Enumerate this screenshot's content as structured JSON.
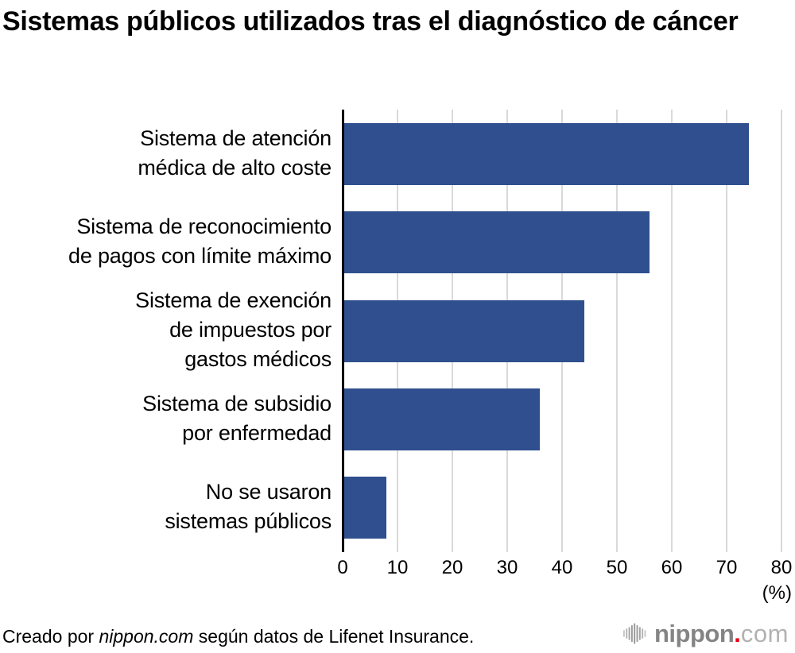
{
  "title": "Sistemas públicos utilizados tras el diagnóstico de cáncer",
  "chart_data": {
    "type": "bar",
    "orientation": "horizontal",
    "title": "Sistemas públicos utilizados tras el diagnóstico de cáncer",
    "categories": [
      "Sistema de atención médica de alto coste",
      "Sistema de reconocimiento de pagos con límite máximo",
      "Sistema de exención de impuestos por gastos médicos",
      "Sistema de subsidio por enfermedad",
      "No se usaron sistemas públicos"
    ],
    "category_lines": [
      [
        "Sistema de atención",
        "médica de alto coste"
      ],
      [
        "Sistema de reconocimiento",
        "de pagos con límite máximo"
      ],
      [
        "Sistema de exención",
        "de impuestos por",
        "gastos médicos"
      ],
      [
        "Sistema de subsidio",
        "por enfermedad"
      ],
      [
        "No se usaron",
        "sistemas públicos"
      ]
    ],
    "values": [
      74,
      56,
      44,
      36,
      8
    ],
    "xlim": [
      0,
      80
    ],
    "xticks": [
      0,
      10,
      20,
      30,
      40,
      50,
      60,
      70,
      80
    ],
    "unit_label": "(%)",
    "bar_color": "#2f4f8f",
    "grid_color": "#d9d9d9",
    "axis_color": "#000000",
    "grid": true,
    "legend": false
  },
  "footer": {
    "prefix": "Creado por ",
    "source_name": "nippon.com",
    "suffix": " según datos de Lifenet Insurance."
  },
  "logo": {
    "brand": "nippon",
    "dot": ".",
    "tld": "com",
    "brand_color": "#848484",
    "dot_color": "#e60012",
    "tld_color": "#b2b2b2",
    "wave_bar_heights": [
      11,
      16,
      21,
      27,
      33,
      27,
      21,
      16,
      11
    ],
    "wave_bar_colors": [
      "#c7c7c7",
      "#b2b2b2",
      "#a3a3a3",
      "#9a9a9a",
      "#949494",
      "#9a9a9a",
      "#a3a3a3",
      "#b2b2b2",
      "#c7c7c7"
    ]
  }
}
